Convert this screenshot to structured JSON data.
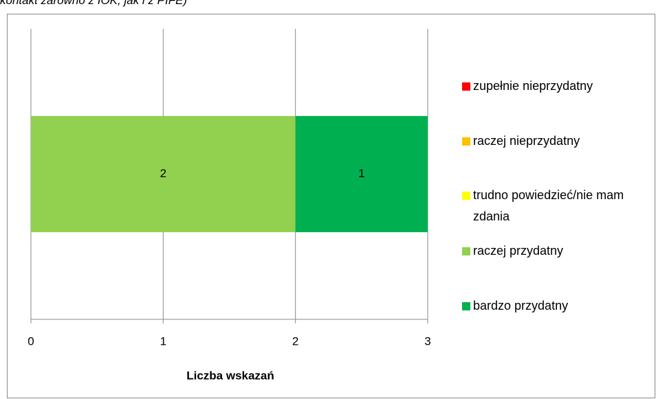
{
  "caption": "kontakt zarówno z IOK, jak i z PIFE)",
  "chart_data": {
    "type": "stacked-bar-horizontal",
    "categories": [
      null
    ],
    "series": [
      {
        "name": "zupełnie nieprzydatny",
        "color": "#ff0000",
        "values": [
          0
        ]
      },
      {
        "name": "raczej nieprzydatny",
        "color": "#ffc000",
        "values": [
          0
        ]
      },
      {
        "name": "trudno powiedzieć/nie mam zdania",
        "color": "#ffff00",
        "values": [
          0
        ]
      },
      {
        "name": "raczej przydatny",
        "color": "#92d050",
        "values": [
          2
        ]
      },
      {
        "name": "bardzo przydatny",
        "color": "#00b050",
        "values": [
          1
        ]
      }
    ],
    "xlabel": "Liczba wskazań",
    "xlim": [
      0,
      3
    ],
    "xticks": [
      0,
      1,
      2,
      3
    ],
    "grid": true,
    "legend": "right"
  }
}
